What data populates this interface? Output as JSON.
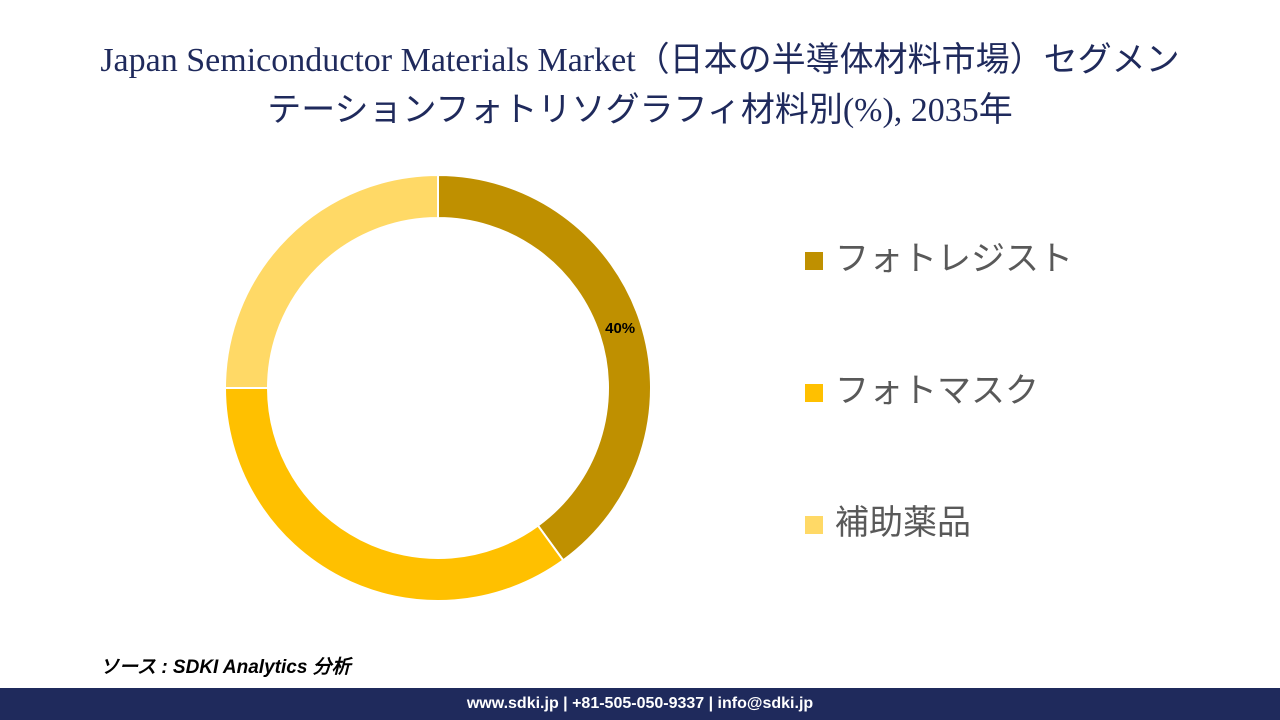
{
  "chart_data": {
    "type": "donut",
    "title": "Japan Semiconductor Materials Market（日本の半導体材料市場）セグメンテーションフォトリソグラフィ材料別(%), 2035年",
    "categories": [
      "フォトレジスト",
      "フォトマスク",
      "補助薬品"
    ],
    "values": [
      40,
      35,
      25
    ],
    "value_labels": [
      "40%",
      null,
      null
    ],
    "colors": [
      "#BF9000",
      "#FFC000",
      "#FFD966"
    ],
    "legend": "right"
  },
  "source": "ソース : SDKI Analytics 分析",
  "footer": "www.sdki.jp | +81-505-050-9337 | info@sdki.jp"
}
